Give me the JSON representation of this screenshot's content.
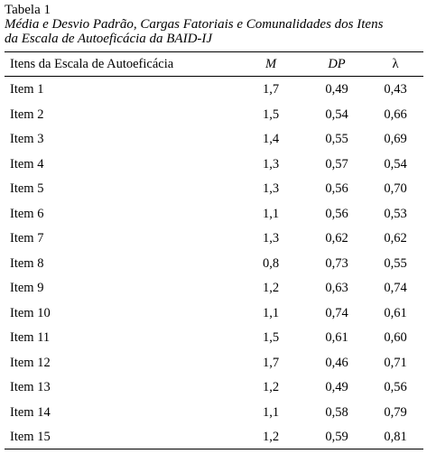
{
  "table": {
    "label": "Tabela  1",
    "title_line1": "Média e Desvio Padrão, Cargas Fatoriais e Comunalidades dos Itens",
    "title_line2": "da Escala de Autoeficácia da BAID-IJ",
    "headers": {
      "item": "Itens da Escala de Autoeficácia",
      "m": "M",
      "dp": "DP",
      "lambda": "λ"
    },
    "rows": [
      {
        "item": "Item 1",
        "m": "1,7",
        "dp": "0,49",
        "lambda": "0,43"
      },
      {
        "item": "Item 2",
        "m": "1,5",
        "dp": "0,54",
        "lambda": "0,66"
      },
      {
        "item": "Item 3",
        "m": "1,4",
        "dp": "0,55",
        "lambda": "0,69"
      },
      {
        "item": "Item 4",
        "m": "1,3",
        "dp": "0,57",
        "lambda": "0,54"
      },
      {
        "item": "Item 5",
        "m": "1,3",
        "dp": "0,56",
        "lambda": "0,70"
      },
      {
        "item": "Item 6",
        "m": "1,1",
        "dp": "0,56",
        "lambda": "0,53"
      },
      {
        "item": "Item 7",
        "m": "1,3",
        "dp": "0,62",
        "lambda": "0,62"
      },
      {
        "item": "Item 8",
        "m": "0,8",
        "dp": "0,73",
        "lambda": "0,55"
      },
      {
        "item": "Item 9",
        "m": "1,2",
        "dp": "0,63",
        "lambda": "0,74"
      },
      {
        "item": "Item 10",
        "m": "1,1",
        "dp": "0,74",
        "lambda": "0,61"
      },
      {
        "item": "Item 11",
        "m": "1,5",
        "dp": "0,61",
        "lambda": "0,60"
      },
      {
        "item": "Item 12",
        "m": "1,7",
        "dp": "0,46",
        "lambda": "0,71"
      },
      {
        "item": "Item 13",
        "m": "1,2",
        "dp": "0,49",
        "lambda": "0,56"
      },
      {
        "item": "Item 14",
        "m": "1,1",
        "dp": "0,58",
        "lambda": "0,79"
      },
      {
        "item": "Item 15",
        "m": "1,2",
        "dp": "0,59",
        "lambda": "0,81"
      }
    ]
  }
}
